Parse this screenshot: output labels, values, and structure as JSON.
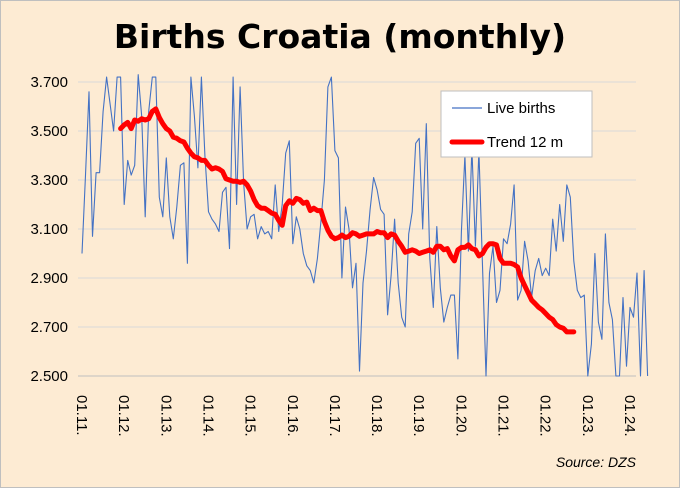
{
  "chart_data": {
    "type": "line",
    "title": "Births Croatia (monthly)",
    "source": "Source: DZS",
    "xlabel": "",
    "ylabel": "",
    "ylim": [
      2500,
      3700
    ],
    "yticks": [
      "2.500",
      "2.700",
      "2.900",
      "3.100",
      "3.300",
      "3.500",
      "3.700"
    ],
    "ytick_values": [
      2500,
      2700,
      2900,
      3100,
      3300,
      3500,
      3700
    ],
    "xticks": [
      "01.11.",
      "01.12.",
      "01.13.",
      "01.14.",
      "01.15.",
      "01.16.",
      "01.17.",
      "01.18.",
      "01.19.",
      "01.20.",
      "01.21.",
      "01.22.",
      "01.23.",
      "01.24."
    ],
    "xtick_index": [
      0,
      12,
      24,
      36,
      48,
      60,
      72,
      84,
      96,
      108,
      120,
      132,
      144,
      156
    ],
    "legend": {
      "position": "top-right",
      "entries": [
        "Live births",
        "Trend 12 m"
      ]
    },
    "colors": {
      "live": "#4472c4",
      "trend": "#ff0000",
      "grid": "#d9d9d9"
    },
    "series": [
      {
        "name": "Live births",
        "start_index": 0,
        "values": [
          3000,
          3320,
          3660,
          3070,
          3330,
          3330,
          3580,
          3720,
          3610,
          3500,
          3720,
          3720,
          3200,
          3380,
          3320,
          3360,
          3730,
          3560,
          3150,
          3580,
          3720,
          3720,
          3230,
          3150,
          3390,
          3150,
          3060,
          3190,
          3360,
          3370,
          2960,
          3720,
          3560,
          3350,
          3720,
          3400,
          3170,
          3140,
          3120,
          3090,
          3250,
          3270,
          3020,
          3720,
          3200,
          3680,
          3290,
          3100,
          3150,
          3160,
          3060,
          3110,
          3080,
          3090,
          3060,
          3280,
          3090,
          3200,
          3410,
          3460,
          3040,
          3150,
          3100,
          3000,
          2950,
          2930,
          2880,
          2980,
          3130,
          3300,
          3680,
          3720,
          3420,
          3390,
          2900,
          3190,
          3100,
          2860,
          2960,
          2520,
          2880,
          3010,
          3180,
          3310,
          3260,
          3180,
          3160,
          2750,
          2910,
          3140,
          2880,
          2740,
          2700,
          3080,
          3170,
          3450,
          3470,
          3100,
          3530,
          2980,
          2780,
          3110,
          2860,
          2720,
          2780,
          2830,
          2830,
          2570,
          3090,
          3400,
          3010,
          3430,
          3030,
          3420,
          2950,
          2500,
          2920,
          3030,
          2800,
          2850,
          3060,
          3040,
          3120,
          3280,
          2810,
          2850,
          3050,
          2970,
          2820,
          2930,
          2980,
          2910,
          2940,
          2910,
          3140,
          3010,
          3200,
          3050,
          3280,
          3230,
          2970,
          2850,
          2820,
          2830,
          2500,
          2630,
          3000,
          2720,
          2650,
          3080,
          2800,
          2730,
          2500,
          2500,
          2820,
          2540,
          2780,
          2740,
          2920,
          2500,
          2930,
          2500
        ]
      },
      {
        "name": "Trend 12 m",
        "start_index": 11,
        "values": [
          3510,
          3525,
          3535,
          3510,
          3545,
          3540,
          3550,
          3545,
          3550,
          3580,
          3590,
          3555,
          3530,
          3510,
          3500,
          3475,
          3470,
          3460,
          3455,
          3430,
          3410,
          3395,
          3390,
          3380,
          3380,
          3360,
          3345,
          3350,
          3345,
          3335,
          3305,
          3300,
          3295,
          3295,
          3290,
          3295,
          3280,
          3255,
          3220,
          3195,
          3185,
          3185,
          3175,
          3165,
          3160,
          3135,
          3115,
          3195,
          3215,
          3205,
          3225,
          3220,
          3205,
          3210,
          3175,
          3185,
          3175,
          3175,
          3130,
          3095,
          3070,
          3060,
          3065,
          3075,
          3065,
          3070,
          3085,
          3080,
          3070,
          3075,
          3080,
          3080,
          3080,
          3090,
          3085,
          3085,
          3065,
          3080,
          3075,
          3050,
          3030,
          3005,
          3010,
          3015,
          3010,
          3000,
          3005,
          3010,
          3015,
          3005,
          3030,
          3030,
          3015,
          3020,
          2990,
          2970,
          3015,
          3025,
          3025,
          3035,
          3020,
          3015,
          2990,
          3000,
          3025,
          3040,
          3040,
          3035,
          2980,
          2960,
          2960,
          2960,
          2955,
          2945,
          2900,
          2870,
          2840,
          2810,
          2795,
          2780,
          2770,
          2755,
          2740,
          2730,
          2710,
          2700,
          2695,
          2680,
          2680,
          2680
        ]
      }
    ]
  }
}
